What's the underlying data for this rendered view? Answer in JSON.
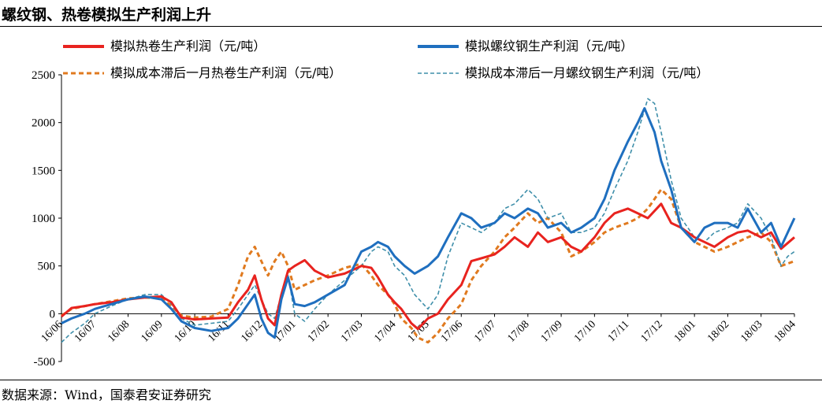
{
  "title": "螺纹钢、热卷模拟生产利润上升",
  "source": "数据来源：Wind，国泰君安证券研究",
  "chart_data": {
    "type": "line",
    "xlabel": "",
    "ylabel": "",
    "ylim": [
      -500,
      2500
    ],
    "yticks": [
      -500,
      0,
      500,
      1000,
      1500,
      2000,
      2500
    ],
    "x_ticks": [
      "16/06",
      "16/07",
      "16/08",
      "16/09",
      "16/10",
      "16/11",
      "16/12",
      "17/01",
      "17/02",
      "17/03",
      "17/04",
      "17/05",
      "17/06",
      "17/07",
      "17/08",
      "17/09",
      "17/10",
      "17/11",
      "17/12",
      "18/01",
      "18/02",
      "18/03",
      "18/04"
    ],
    "legend_position": "top",
    "series": [
      {
        "name": "模拟热卷生产利润（元/吨）",
        "color": "#e8231f",
        "style": "solid",
        "points": [
          [
            0,
            -30
          ],
          [
            0.3,
            60
          ],
          [
            0.7,
            80
          ],
          [
            1,
            100
          ],
          [
            1.5,
            120
          ],
          [
            2,
            150
          ],
          [
            2.5,
            170
          ],
          [
            3,
            180
          ],
          [
            3.3,
            120
          ],
          [
            3.6,
            -40
          ],
          [
            4,
            -60
          ],
          [
            4.5,
            -50
          ],
          [
            5,
            -40
          ],
          [
            5.3,
            120
          ],
          [
            5.6,
            250
          ],
          [
            5.8,
            400
          ],
          [
            6,
            150
          ],
          [
            6.2,
            -50
          ],
          [
            6.4,
            -120
          ],
          [
            6.6,
            200
          ],
          [
            6.8,
            450
          ],
          [
            7,
            500
          ],
          [
            7.3,
            560
          ],
          [
            7.6,
            450
          ],
          [
            8,
            380
          ],
          [
            8.5,
            420
          ],
          [
            9,
            500
          ],
          [
            9.3,
            480
          ],
          [
            9.5,
            380
          ],
          [
            9.8,
            200
          ],
          [
            10,
            120
          ],
          [
            10.2,
            50
          ],
          [
            10.5,
            -100
          ],
          [
            10.7,
            -160
          ],
          [
            11,
            -50
          ],
          [
            11.3,
            0
          ],
          [
            11.6,
            150
          ],
          [
            12,
            300
          ],
          [
            12.3,
            550
          ],
          [
            12.6,
            580
          ],
          [
            13,
            620
          ],
          [
            13.3,
            700
          ],
          [
            13.6,
            800
          ],
          [
            14,
            700
          ],
          [
            14.3,
            850
          ],
          [
            14.6,
            750
          ],
          [
            15,
            800
          ],
          [
            15.3,
            700
          ],
          [
            15.6,
            650
          ],
          [
            16,
            800
          ],
          [
            16.3,
            950
          ],
          [
            16.6,
            1050
          ],
          [
            17,
            1100
          ],
          [
            17.3,
            1050
          ],
          [
            17.6,
            1000
          ],
          [
            18,
            1150
          ],
          [
            18.3,
            950
          ],
          [
            18.6,
            900
          ],
          [
            19,
            800
          ],
          [
            19.3,
            750
          ],
          [
            19.6,
            700
          ],
          [
            20,
            800
          ],
          [
            20.3,
            850
          ],
          [
            20.6,
            870
          ],
          [
            21,
            800
          ],
          [
            21.3,
            850
          ],
          [
            21.6,
            680
          ],
          [
            22,
            800
          ]
        ]
      },
      {
        "name": "模拟螺纹钢生产利润（元/吨）",
        "color": "#1f6fbf",
        "style": "solid",
        "points": [
          [
            0,
            -100
          ],
          [
            0.3,
            -50
          ],
          [
            0.7,
            0
          ],
          [
            1,
            50
          ],
          [
            1.5,
            100
          ],
          [
            2,
            150
          ],
          [
            2.5,
            180
          ],
          [
            3,
            150
          ],
          [
            3.3,
            50
          ],
          [
            3.6,
            -80
          ],
          [
            4,
            -150
          ],
          [
            4.5,
            -180
          ],
          [
            5,
            -150
          ],
          [
            5.3,
            -50
          ],
          [
            5.6,
            100
          ],
          [
            5.8,
            200
          ],
          [
            6,
            -50
          ],
          [
            6.2,
            -200
          ],
          [
            6.4,
            -250
          ],
          [
            6.6,
            150
          ],
          [
            6.8,
            380
          ],
          [
            7,
            100
          ],
          [
            7.3,
            80
          ],
          [
            7.6,
            120
          ],
          [
            8,
            200
          ],
          [
            8.5,
            300
          ],
          [
            9,
            650
          ],
          [
            9.3,
            700
          ],
          [
            9.5,
            750
          ],
          [
            9.8,
            700
          ],
          [
            10,
            600
          ],
          [
            10.3,
            500
          ],
          [
            10.6,
            420
          ],
          [
            11,
            500
          ],
          [
            11.3,
            600
          ],
          [
            11.6,
            800
          ],
          [
            12,
            1050
          ],
          [
            12.3,
            1000
          ],
          [
            12.6,
            900
          ],
          [
            13,
            950
          ],
          [
            13.3,
            1050
          ],
          [
            13.6,
            1000
          ],
          [
            14,
            1100
          ],
          [
            14.3,
            1050
          ],
          [
            14.6,
            900
          ],
          [
            15,
            950
          ],
          [
            15.3,
            850
          ],
          [
            15.6,
            900
          ],
          [
            16,
            1000
          ],
          [
            16.3,
            1200
          ],
          [
            16.6,
            1500
          ],
          [
            17,
            1800
          ],
          [
            17.3,
            2000
          ],
          [
            17.5,
            2150
          ],
          [
            17.8,
            1900
          ],
          [
            18,
            1600
          ],
          [
            18.3,
            1300
          ],
          [
            18.6,
            900
          ],
          [
            19,
            750
          ],
          [
            19.3,
            900
          ],
          [
            19.6,
            950
          ],
          [
            20,
            950
          ],
          [
            20.3,
            900
          ],
          [
            20.6,
            1100
          ],
          [
            21,
            850
          ],
          [
            21.3,
            950
          ],
          [
            21.6,
            700
          ],
          [
            21.8,
            850
          ],
          [
            22,
            1000
          ]
        ]
      },
      {
        "name": "模拟成本滞后一月热卷生产利润（元/吨）",
        "color": "#e07a1f",
        "style": "dashed",
        "points": [
          [
            0,
            -20
          ],
          [
            0.3,
            50
          ],
          [
            0.7,
            80
          ],
          [
            1,
            100
          ],
          [
            1.5,
            130
          ],
          [
            2,
            160
          ],
          [
            2.5,
            170
          ],
          [
            3,
            160
          ],
          [
            3.3,
            80
          ],
          [
            3.6,
            -20
          ],
          [
            4,
            -40
          ],
          [
            4.5,
            -30
          ],
          [
            5,
            50
          ],
          [
            5.3,
            300
          ],
          [
            5.6,
            600
          ],
          [
            5.8,
            700
          ],
          [
            6,
            550
          ],
          [
            6.2,
            400
          ],
          [
            6.4,
            550
          ],
          [
            6.6,
            650
          ],
          [
            6.8,
            500
          ],
          [
            7,
            250
          ],
          [
            7.3,
            300
          ],
          [
            7.6,
            350
          ],
          [
            8,
            400
          ],
          [
            8.5,
            480
          ],
          [
            9,
            520
          ],
          [
            9.3,
            400
          ],
          [
            9.5,
            300
          ],
          [
            9.8,
            200
          ],
          [
            10,
            100
          ],
          [
            10.2,
            -50
          ],
          [
            10.5,
            -150
          ],
          [
            10.7,
            -250
          ],
          [
            11,
            -300
          ],
          [
            11.3,
            -200
          ],
          [
            11.6,
            -50
          ],
          [
            12,
            100
          ],
          [
            12.3,
            350
          ],
          [
            12.6,
            500
          ],
          [
            13,
            650
          ],
          [
            13.3,
            800
          ],
          [
            13.6,
            900
          ],
          [
            14,
            1050
          ],
          [
            14.3,
            950
          ],
          [
            14.6,
            1000
          ],
          [
            15,
            850
          ],
          [
            15.3,
            600
          ],
          [
            15.6,
            650
          ],
          [
            16,
            750
          ],
          [
            16.3,
            850
          ],
          [
            16.6,
            900
          ],
          [
            17,
            950
          ],
          [
            17.3,
            1000
          ],
          [
            17.6,
            1100
          ],
          [
            18,
            1300
          ],
          [
            18.3,
            1200
          ],
          [
            18.6,
            900
          ],
          [
            19,
            750
          ],
          [
            19.3,
            700
          ],
          [
            19.6,
            650
          ],
          [
            20,
            700
          ],
          [
            20.3,
            750
          ],
          [
            20.6,
            800
          ],
          [
            21,
            850
          ],
          [
            21.3,
            750
          ],
          [
            21.6,
            500
          ],
          [
            22,
            550
          ]
        ]
      },
      {
        "name": "模拟成本滞后一月螺纹钢生产利润（元/吨）",
        "color": "#3f8faa",
        "style": "dashed",
        "points": [
          [
            0,
            -300
          ],
          [
            0.3,
            -200
          ],
          [
            0.7,
            -100
          ],
          [
            1,
            0
          ],
          [
            1.5,
            80
          ],
          [
            2,
            150
          ],
          [
            2.5,
            200
          ],
          [
            3,
            200
          ],
          [
            3.3,
            100
          ],
          [
            3.6,
            -50
          ],
          [
            4,
            -120
          ],
          [
            4.5,
            -100
          ],
          [
            5,
            -80
          ],
          [
            5.3,
            50
          ],
          [
            5.6,
            200
          ],
          [
            5.8,
            300
          ],
          [
            6,
            150
          ],
          [
            6.2,
            0
          ],
          [
            6.4,
            -50
          ],
          [
            6.6,
            200
          ],
          [
            6.8,
            400
          ],
          [
            7,
            0
          ],
          [
            7.3,
            -80
          ],
          [
            7.6,
            50
          ],
          [
            8,
            200
          ],
          [
            8.5,
            350
          ],
          [
            9,
            500
          ],
          [
            9.3,
            650
          ],
          [
            9.5,
            700
          ],
          [
            9.8,
            650
          ],
          [
            10,
            500
          ],
          [
            10.3,
            400
          ],
          [
            10.6,
            200
          ],
          [
            11,
            50
          ],
          [
            11.3,
            200
          ],
          [
            11.6,
            600
          ],
          [
            12,
            950
          ],
          [
            12.3,
            900
          ],
          [
            12.6,
            850
          ],
          [
            13,
            950
          ],
          [
            13.3,
            1100
          ],
          [
            13.6,
            1150
          ],
          [
            14,
            1300
          ],
          [
            14.3,
            1200
          ],
          [
            14.6,
            1000
          ],
          [
            15,
            1050
          ],
          [
            15.3,
            850
          ],
          [
            15.6,
            850
          ],
          [
            16,
            900
          ],
          [
            16.3,
            1050
          ],
          [
            16.6,
            1300
          ],
          [
            17,
            1600
          ],
          [
            17.3,
            1900
          ],
          [
            17.6,
            2250
          ],
          [
            17.8,
            2200
          ],
          [
            18,
            1900
          ],
          [
            18.3,
            1400
          ],
          [
            18.6,
            1000
          ],
          [
            19,
            800
          ],
          [
            19.3,
            750
          ],
          [
            19.6,
            850
          ],
          [
            20,
            900
          ],
          [
            20.3,
            950
          ],
          [
            20.6,
            1150
          ],
          [
            21,
            1000
          ],
          [
            21.3,
            800
          ],
          [
            21.6,
            500
          ],
          [
            21.8,
            600
          ],
          [
            22,
            650
          ]
        ]
      }
    ]
  }
}
